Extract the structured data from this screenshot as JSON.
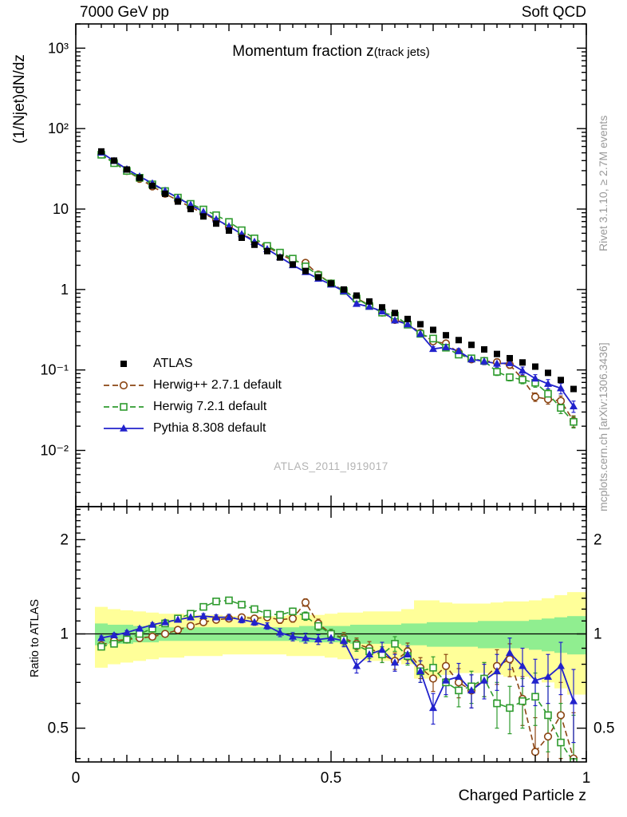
{
  "header": {
    "left": "7000 GeV pp",
    "right": "Soft QCD"
  },
  "titles": {
    "main": "Momentum fraction z",
    "paren": "(track jets)",
    "ylabel_top": "(1/Njet)dN/dz",
    "ylabel_ratio": "Ratio to ATLAS",
    "xlabel": "Charged Particle z"
  },
  "side_captions": {
    "top": "Rivet 3.1.10, ≥ 2.7M events",
    "bottom": "mcplots.cern.ch [arXiv:1306.3436]"
  },
  "watermark": "ATLAS_2011_I919017",
  "axes": {
    "x": {
      "label": "Charged Particle z",
      "tick_labels": [
        "0",
        "0.5",
        "1"
      ],
      "tick_values": [
        0,
        0.5,
        1
      ]
    },
    "y_top": {
      "label": "(1/Njet)dN/dz",
      "scale": "log",
      "tick_labels": [
        "10³",
        "10²",
        "10",
        "1",
        "10⁻¹",
        "10⁻²"
      ],
      "tick_values": [
        1000,
        100,
        10,
        1,
        0.1,
        0.01
      ]
    },
    "y_ratio": {
      "label": "Ratio to ATLAS",
      "scale": "log",
      "tick_labels": [
        "2",
        "1",
        "0.5"
      ],
      "tick_values": [
        2,
        1,
        0.5
      ]
    }
  },
  "chart_data": {
    "type": "line",
    "title": "Momentum fraction z (track jets)",
    "xlabel": "Charged Particle z",
    "ylabel": "(1/Njet)dN/dz",
    "xlim": [
      0,
      1
    ],
    "top_panel": {
      "yscale": "log",
      "ylim": [
        0.002,
        2000
      ]
    },
    "ratio_panel": {
      "yscale": "log",
      "ylim": [
        0.39,
        2.55
      ],
      "reference": 1
    },
    "x": [
      0.05,
      0.075,
      0.1,
      0.125,
      0.15,
      0.175,
      0.2,
      0.225,
      0.25,
      0.275,
      0.3,
      0.325,
      0.35,
      0.375,
      0.4,
      0.425,
      0.45,
      0.475,
      0.5,
      0.525,
      0.55,
      0.575,
      0.6,
      0.625,
      0.65,
      0.675,
      0.7,
      0.725,
      0.75,
      0.775,
      0.8,
      0.825,
      0.85,
      0.875,
      0.9,
      0.925,
      0.95,
      0.975
    ],
    "bin_halfwidth": 0.0125,
    "err": [
      0.015,
      0.015,
      0.015,
      0.015,
      0.015,
      0.02,
      0.02,
      0.02,
      0.02,
      0.02,
      0.025,
      0.025,
      0.025,
      0.025,
      0.03,
      0.03,
      0.035,
      0.035,
      0.035,
      0.04,
      0.04,
      0.045,
      0.05,
      0.05,
      0.055,
      0.06,
      0.065,
      0.07,
      0.075,
      0.08,
      0.09,
      0.1,
      0.1,
      0.11,
      0.12,
      0.13,
      0.15,
      0.16
    ],
    "series": [
      {
        "name": "ATLAS",
        "color": "#000000",
        "marker": "squareF",
        "line": "none",
        "values": [
          52,
          40,
          31,
          24.5,
          19.5,
          15.5,
          12.4,
          10,
          8.1,
          6.6,
          5.4,
          4.4,
          3.6,
          3.0,
          2.5,
          2.05,
          1.7,
          1.42,
          1.19,
          1.0,
          0.84,
          0.71,
          0.6,
          0.51,
          0.43,
          0.37,
          0.315,
          0.27,
          0.235,
          0.205,
          0.18,
          0.158,
          0.14,
          0.124,
          0.11,
          0.092,
          0.075,
          0.058
        ]
      },
      {
        "name": "Herwig++ 2.7.1 default",
        "color": "#8b4513",
        "marker": "circleO",
        "line": "dash",
        "ratio": [
          0.92,
          0.95,
          0.96,
          0.97,
          0.98,
          1.0,
          1.03,
          1.06,
          1.09,
          1.11,
          1.12,
          1.13,
          1.12,
          1.13,
          1.11,
          1.12,
          1.26,
          1.08,
          1.0,
          0.97,
          0.93,
          0.9,
          0.86,
          0.82,
          0.88,
          0.78,
          0.72,
          0.79,
          0.7,
          0.66,
          0.72,
          0.79,
          0.83,
          0.62,
          0.42,
          0.47,
          0.55,
          0.4
        ]
      },
      {
        "name": "Herwig 7.2.1 default",
        "color": "#2e9b2e",
        "marker": "squareO",
        "line": "dash",
        "ratio": [
          0.91,
          0.93,
          0.96,
          1.0,
          1.04,
          1.08,
          1.12,
          1.16,
          1.22,
          1.27,
          1.28,
          1.24,
          1.2,
          1.16,
          1.15,
          1.18,
          1.14,
          1.06,
          1.0,
          0.96,
          0.92,
          0.88,
          0.86,
          0.93,
          0.85,
          0.76,
          0.78,
          0.7,
          0.66,
          0.68,
          0.72,
          0.6,
          0.58,
          0.61,
          0.63,
          0.55,
          0.45,
          0.39
        ]
      },
      {
        "name": "Pythia 8.308 default",
        "color": "#2222cc",
        "marker": "triF",
        "line": "solid",
        "ratio": [
          0.97,
          0.99,
          1.01,
          1.04,
          1.07,
          1.09,
          1.11,
          1.13,
          1.14,
          1.13,
          1.13,
          1.11,
          1.09,
          1.06,
          1.01,
          0.98,
          0.97,
          0.96,
          0.97,
          0.95,
          0.79,
          0.86,
          0.89,
          0.81,
          0.86,
          0.76,
          0.58,
          0.71,
          0.73,
          0.66,
          0.71,
          0.76,
          0.87,
          0.79,
          0.71,
          0.73,
          0.79,
          0.61
        ]
      }
    ],
    "bands": {
      "yellow": {
        "color": "#ffff99",
        "halfwidth": [
          0.22,
          0.2,
          0.19,
          0.18,
          0.17,
          0.16,
          0.16,
          0.15,
          0.15,
          0.15,
          0.14,
          0.14,
          0.14,
          0.14,
          0.14,
          0.15,
          0.15,
          0.15,
          0.16,
          0.17,
          0.17,
          0.18,
          0.18,
          0.18,
          0.2,
          0.28,
          0.28,
          0.26,
          0.25,
          0.25,
          0.25,
          0.26,
          0.27,
          0.27,
          0.28,
          0.3,
          0.33,
          0.36
        ]
      },
      "green": {
        "color": "#90ee90",
        "halfwidth": [
          0.08,
          0.07,
          0.07,
          0.06,
          0.06,
          0.05,
          0.05,
          0.05,
          0.05,
          0.05,
          0.05,
          0.05,
          0.05,
          0.05,
          0.05,
          0.05,
          0.06,
          0.06,
          0.06,
          0.06,
          0.07,
          0.07,
          0.07,
          0.07,
          0.08,
          0.08,
          0.09,
          0.09,
          0.09,
          0.09,
          0.1,
          0.1,
          0.1,
          0.1,
          0.11,
          0.12,
          0.13,
          0.14
        ]
      }
    }
  }
}
